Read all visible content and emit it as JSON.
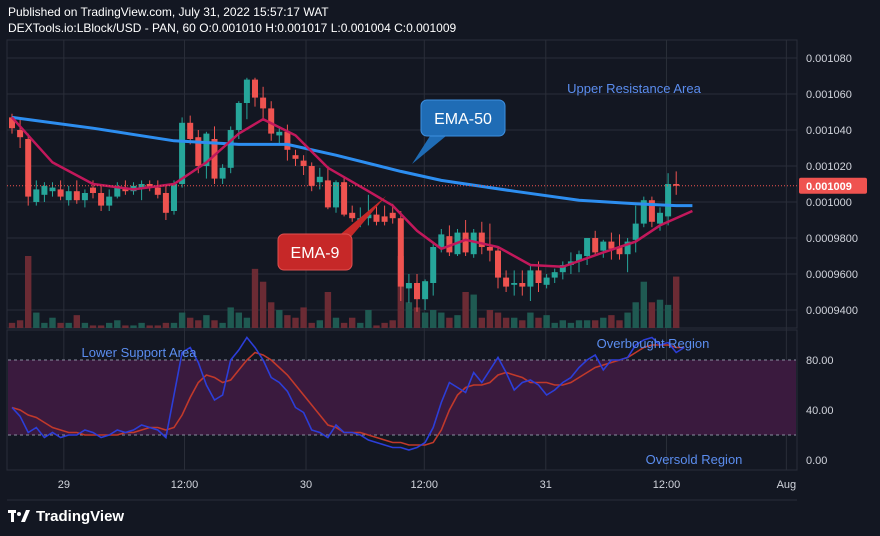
{
  "header": {
    "published": "Published on TradingView.com, July 31, 2022 15:57:17 WAT",
    "symbol": "DEXTools.io:LBlock/USD - PAN, 60",
    "o_label": "O:",
    "o": "0.001010",
    "h_label": "H:",
    "h": "0.001017",
    "l_label": "L:",
    "l": "0.001004",
    "c_label": "C:",
    "c": "0.001009"
  },
  "footer": {
    "brand": "TradingView",
    "logo_icon": "tradingview-logo-icon"
  },
  "colors": {
    "background": "#131722",
    "grid": "#2a2e39",
    "up": "#26a69a",
    "down": "#ef5350",
    "ema50": "#2d8ef0",
    "ema9": "#c2185b",
    "rsi": "#2c3ed8",
    "rsi_ma": "#c0392b",
    "rsi_band": "#3a1a3e",
    "label_blue": "#5b8def",
    "price_tag": "#ef5350"
  },
  "chart_data": [
    {
      "type": "candlestick",
      "name": "price",
      "ylim": [
        0.00093,
        0.00109
      ],
      "y_ticks": [
        "0.0009400",
        "0.0009600",
        "0.0009800",
        "0.001000",
        "0.001020",
        "0.001040",
        "0.001060",
        "0.001080"
      ],
      "x_ticks": [
        "29",
        "12:00",
        "30",
        "12:00",
        "31",
        "12:00",
        "Aug"
      ],
      "last_price": "0.001009",
      "candles": [
        [
          0.001047,
          0.001049,
          0.001038,
          0.001041
        ],
        [
          0.00104,
          0.001046,
          0.00103,
          0.001036
        ],
        [
          0.001035,
          0.001038,
          0.000998,
          0.001003
        ],
        [
          0.001,
          0.001012,
          0.000998,
          0.001007
        ],
        [
          0.001004,
          0.001011,
          0.001,
          0.001009
        ],
        [
          0.001006,
          0.001011,
          0.001003,
          0.001008
        ],
        [
          0.001007,
          0.001012,
          0.001001,
          0.001003
        ],
        [
          0.001001,
          0.001009,
          0.000998,
          0.001006
        ],
        [
          0.001006,
          0.001012,
          0.000999,
          0.001001
        ],
        [
          0.001001,
          0.001007,
          0.000997,
          0.001005
        ],
        [
          0.001008,
          0.001012,
          0.001002,
          0.001005
        ],
        [
          0.001005,
          0.001009,
          0.000995,
          0.000998
        ],
        [
          0.000998,
          0.001007,
          0.000995,
          0.001003
        ],
        [
          0.001003,
          0.001011,
          0.001002,
          0.001009
        ],
        [
          0.001008,
          0.001012,
          0.001004,
          0.001006
        ],
        [
          0.001006,
          0.001011,
          0.001004,
          0.001009
        ],
        [
          0.001008,
          0.001012,
          0.001001,
          0.00101
        ],
        [
          0.00101,
          0.001012,
          0.001006,
          0.001008
        ],
        [
          0.001008,
          0.001012,
          0.001002,
          0.001004
        ],
        [
          0.001005,
          0.001009,
          0.00099,
          0.000994
        ],
        [
          0.000995,
          0.001012,
          0.000993,
          0.00101
        ],
        [
          0.00101,
          0.001047,
          0.001008,
          0.001044
        ],
        [
          0.001044,
          0.001048,
          0.001032,
          0.001035
        ],
        [
          0.001036,
          0.00104,
          0.001016,
          0.00102
        ],
        [
          0.00102,
          0.001039,
          0.001013,
          0.001038
        ],
        [
          0.001035,
          0.001042,
          0.00101,
          0.001013
        ],
        [
          0.001013,
          0.001021,
          0.00101,
          0.001019
        ],
        [
          0.001019,
          0.001042,
          0.001016,
          0.00104
        ],
        [
          0.00104,
          0.001056,
          0.001035,
          0.001055
        ],
        [
          0.001055,
          0.001069,
          0.001046,
          0.001068
        ],
        [
          0.001068,
          0.001069,
          0.001053,
          0.001058
        ],
        [
          0.001058,
          0.001064,
          0.001046,
          0.001052
        ],
        [
          0.001052,
          0.001056,
          0.001034,
          0.001038
        ],
        [
          0.001037,
          0.001041,
          0.001032,
          0.001039
        ],
        [
          0.001039,
          0.001043,
          0.001023,
          0.001029
        ],
        [
          0.001026,
          0.001029,
          0.00102,
          0.001024
        ],
        [
          0.001023,
          0.001026,
          0.001015,
          0.00102
        ],
        [
          0.00102,
          0.001022,
          0.001006,
          0.001009
        ],
        [
          0.001011,
          0.001019,
          0.001007,
          0.001014
        ],
        [
          0.001012,
          0.00102,
          0.000996,
          0.000997
        ],
        [
          0.000997,
          0.001012,
          0.000994,
          0.001011
        ],
        [
          0.001011,
          0.001014,
          0.000992,
          0.000993
        ],
        [
          0.000994,
          0.000998,
          0.000989,
          0.000991
        ],
        [
          0.00099,
          0.000997,
          0.000986,
          0.000991
        ],
        [
          0.000991,
          0.001004,
          0.000987,
          0.000993
        ],
        [
          0.000993,
          0.000998,
          0.000987,
          0.000989
        ],
        [
          0.000992,
          0.000998,
          0.000987,
          0.000989
        ],
        [
          0.000994,
          0.000999,
          0.000988,
          0.000991
        ],
        [
          0.000991,
          0.000995,
          0.000945,
          0.000953
        ],
        [
          0.000952,
          0.00096,
          0.000944,
          0.000955
        ],
        [
          0.000955,
          0.00096,
          0.000939,
          0.000946
        ],
        [
          0.000946,
          0.000957,
          0.00094,
          0.000956
        ],
        [
          0.000955,
          0.000977,
          0.000948,
          0.000975
        ],
        [
          0.000975,
          0.000985,
          0.000972,
          0.000982
        ],
        [
          0.000981,
          0.000987,
          0.00097,
          0.000972
        ],
        [
          0.000971,
          0.000985,
          0.00097,
          0.000983
        ],
        [
          0.000983,
          0.00099,
          0.00097,
          0.000972
        ],
        [
          0.000971,
          0.000985,
          0.000969,
          0.000983
        ],
        [
          0.000983,
          0.000989,
          0.000971,
          0.000975
        ],
        [
          0.000975,
          0.000988,
          0.000967,
          0.000973
        ],
        [
          0.000973,
          0.000975,
          0.000952,
          0.000958
        ],
        [
          0.000958,
          0.000962,
          0.00095,
          0.000953
        ],
        [
          0.000954,
          0.000962,
          0.000948,
          0.000955
        ],
        [
          0.000955,
          0.000962,
          0.000948,
          0.000953
        ],
        [
          0.000953,
          0.000965,
          0.000945,
          0.000962
        ],
        [
          0.000962,
          0.000967,
          0.00095,
          0.000955
        ],
        [
          0.000954,
          0.00096,
          0.000952,
          0.000958
        ],
        [
          0.000958,
          0.000963,
          0.000955,
          0.000961
        ],
        [
          0.000961,
          0.000967,
          0.000957,
          0.000965
        ],
        [
          0.000965,
          0.000972,
          0.00096,
          0.000967
        ],
        [
          0.000967,
          0.000973,
          0.000961,
          0.000971
        ],
        [
          0.00097,
          0.00098,
          0.000965,
          0.00098
        ],
        [
          0.00098,
          0.000984,
          0.00097,
          0.000972
        ],
        [
          0.000973,
          0.000979,
          0.000969,
          0.000978
        ],
        [
          0.000978,
          0.000983,
          0.000968,
          0.000974
        ],
        [
          0.000975,
          0.000982,
          0.000968,
          0.000971
        ],
        [
          0.000971,
          0.00098,
          0.000961,
          0.000978
        ],
        [
          0.000979,
          0.000998,
          0.000972,
          0.000988
        ],
        [
          0.000988,
          0.001003,
          0.000986,
          0.001001
        ],
        [
          0.001001,
          0.001003,
          0.000986,
          0.000989
        ],
        [
          0.000988,
          0.000997,
          0.000984,
          0.000994
        ],
        [
          0.000992,
          0.001016,
          0.000987,
          0.00101
        ],
        [
          0.00101,
          0.001017,
          0.001004,
          0.001009
        ]
      ]
    },
    {
      "type": "line",
      "name": "EMA-50",
      "points": [
        [
          0,
          0.001047
        ],
        [
          10,
          0.001041
        ],
        [
          20,
          0.001034
        ],
        [
          28,
          0.001032
        ],
        [
          34,
          0.001032
        ],
        [
          40,
          0.001026
        ],
        [
          48,
          0.001017
        ],
        [
          53,
          0.001012
        ],
        [
          62,
          0.001006
        ],
        [
          70,
          0.001001
        ],
        [
          77,
          0.000999
        ],
        [
          82,
          0.000998
        ],
        [
          84,
          0.000998
        ]
      ]
    },
    {
      "type": "line",
      "name": "EMA-9",
      "points": [
        [
          0,
          0.001047
        ],
        [
          2,
          0.001037
        ],
        [
          5,
          0.001022
        ],
        [
          10,
          0.00101
        ],
        [
          15,
          0.001007
        ],
        [
          20,
          0.00101
        ],
        [
          24,
          0.001022
        ],
        [
          28,
          0.001038
        ],
        [
          31,
          0.001046
        ],
        [
          35,
          0.001037
        ],
        [
          39,
          0.001019
        ],
        [
          44,
          0.001006
        ],
        [
          47,
          0.000998
        ],
        [
          50,
          0.000984
        ],
        [
          53,
          0.000974
        ],
        [
          56,
          0.000979
        ],
        [
          60,
          0.000975
        ],
        [
          64,
          0.000965
        ],
        [
          68,
          0.000964
        ],
        [
          73,
          0.000972
        ],
        [
          77,
          0.000978
        ],
        [
          80,
          0.000987
        ],
        [
          84,
          0.000995
        ]
      ]
    },
    {
      "type": "bar",
      "name": "volume",
      "values": [
        2,
        3,
        28,
        6,
        2,
        4,
        2,
        2,
        5,
        2,
        1,
        1,
        2,
        3,
        1,
        1,
        2,
        1,
        1,
        2,
        2,
        6,
        4,
        3,
        5,
        3,
        2,
        8,
        6,
        4,
        23,
        18,
        10,
        7,
        5,
        4,
        8,
        2,
        3,
        14,
        4,
        2,
        4,
        2,
        7,
        1,
        2,
        3,
        28,
        10,
        8,
        6,
        7,
        6,
        4,
        5,
        14,
        13,
        4,
        7,
        6,
        4,
        4,
        3,
        6,
        4,
        5,
        2,
        3,
        2,
        3,
        3,
        3,
        4,
        5,
        3,
        6,
        10,
        18,
        10,
        11,
        9,
        20,
        7
      ],
      "colors": "direction of candle"
    },
    {
      "type": "line",
      "name": "RSI",
      "ylim": [
        -8,
        104
      ],
      "y_ticks": [
        "0.00",
        "40.00",
        "80.00"
      ],
      "band": [
        20,
        80
      ],
      "series_rsi": [
        42,
        35,
        22,
        26,
        18,
        22,
        18,
        20,
        20,
        24,
        22,
        18,
        20,
        24,
        22,
        24,
        28,
        26,
        24,
        18,
        52,
        86,
        90,
        78,
        60,
        48,
        52,
        80,
        88,
        98,
        90,
        80,
        66,
        62,
        55,
        42,
        38,
        24,
        22,
        18,
        28,
        22,
        22,
        20,
        16,
        14,
        12,
        10,
        10,
        8,
        10,
        14,
        26,
        46,
        62,
        58,
        54,
        70,
        62,
        72,
        82,
        70,
        56,
        62,
        64,
        60,
        52,
        56,
        62,
        66,
        74,
        80,
        84,
        72,
        80,
        80,
        82,
        92,
        96,
        98,
        92,
        94,
        86,
        90
      ],
      "series_ma": [
        42,
        40,
        36,
        34,
        30,
        26,
        24,
        22,
        22,
        20,
        20,
        20,
        20,
        20,
        22,
        22,
        24,
        26,
        26,
        24,
        26,
        36,
        50,
        62,
        68,
        66,
        62,
        64,
        72,
        80,
        86,
        84,
        80,
        74,
        68,
        60,
        52,
        44,
        36,
        28,
        26,
        22,
        22,
        22,
        20,
        18,
        16,
        14,
        14,
        12,
        12,
        12,
        14,
        24,
        40,
        52,
        58,
        60,
        60,
        62,
        68,
        70,
        68,
        66,
        62,
        62,
        62,
        60,
        60,
        62,
        66,
        70,
        74,
        76,
        78,
        80,
        82,
        86,
        90,
        92,
        92,
        92,
        90,
        90
      ]
    }
  ],
  "annotations": {
    "upper_resistance": "Upper Resistance Area",
    "lower_support": "Lower Support Area",
    "overbought": "Overbought Region",
    "oversold": "Oversold Region",
    "ema50_label": "EMA-50",
    "ema9_label": "EMA-9"
  }
}
